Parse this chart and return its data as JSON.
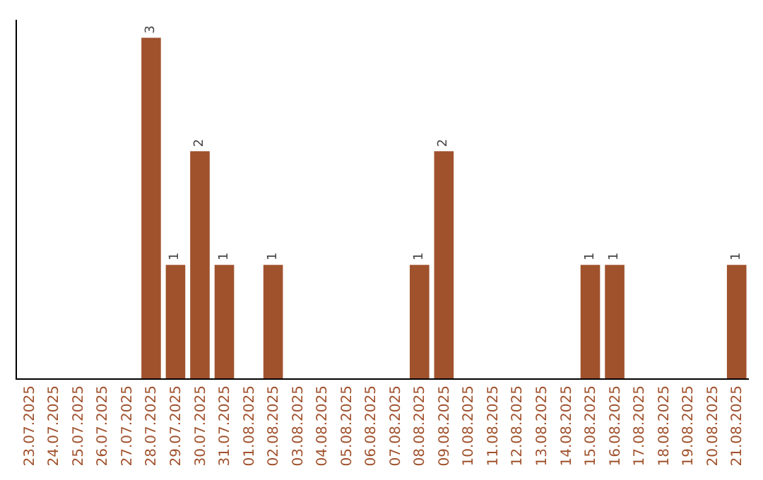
{
  "chart_data": {
    "type": "bar",
    "categories": [
      "23.07.2025",
      "24.07.2025",
      "25.07.2025",
      "26.07.2025",
      "27.07.2025",
      "28.07.2025",
      "29.07.2025",
      "30.07.2025",
      "31.07.2025",
      "01.08.2025",
      "02.08.2025",
      "03.08.2025",
      "04.08.2025",
      "05.08.2025",
      "06.08.2025",
      "07.08.2025",
      "08.08.2025",
      "09.08.2025",
      "10.08.2025",
      "11.08.2025",
      "12.08.2025",
      "13.08.2025",
      "14.08.2025",
      "15.08.2025",
      "16.08.2025",
      "17.08.2025",
      "18.08.2025",
      "19.08.2025",
      "20.08.2025",
      "21.08.2025"
    ],
    "values": [
      0,
      0,
      0,
      0,
      0,
      3,
      1,
      2,
      1,
      0,
      1,
      0,
      0,
      0,
      0,
      0,
      1,
      2,
      0,
      0,
      0,
      0,
      0,
      1,
      1,
      0,
      0,
      0,
      0,
      1
    ],
    "value_labels": [
      null,
      null,
      null,
      null,
      null,
      "3",
      "1",
      "2",
      "1",
      null,
      "1",
      null,
      null,
      null,
      null,
      null,
      "1",
      "2",
      null,
      null,
      null,
      null,
      null,
      "1",
      "1",
      null,
      null,
      null,
      null,
      "1"
    ],
    "color": "#a0522d",
    "legend": false,
    "tick_labels": "x"
  }
}
